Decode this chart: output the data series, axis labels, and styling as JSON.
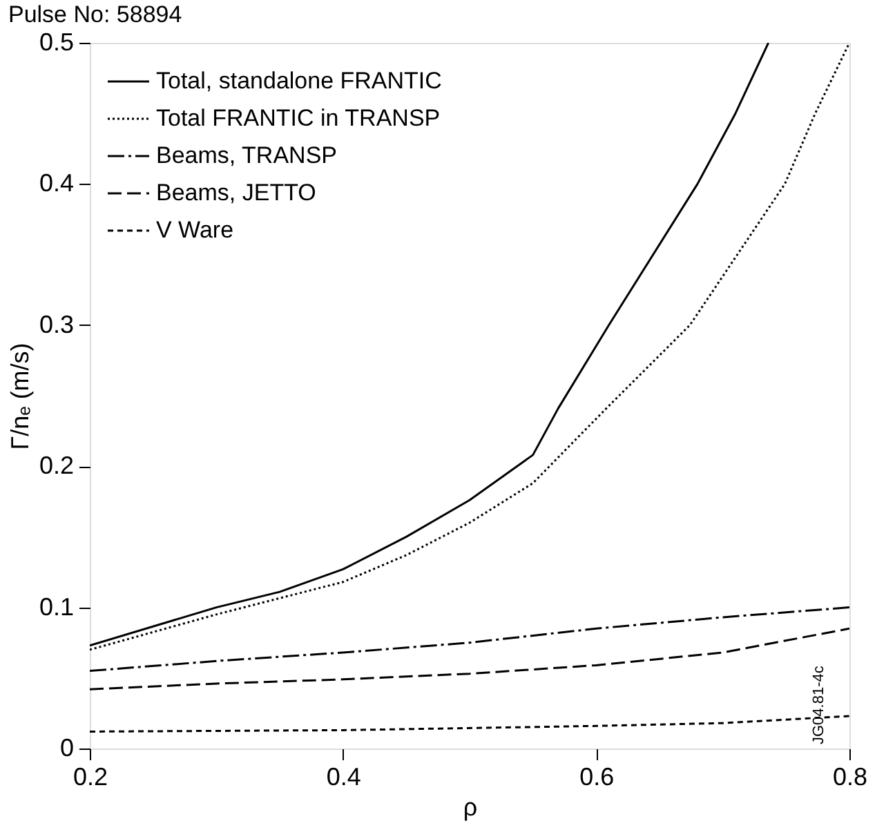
{
  "chart_data": {
    "type": "line",
    "title": "Pulse No: 58894",
    "xlabel": "ρ",
    "ylabel": "Γ/nₑ (m/s)",
    "xlim": [
      0.2,
      0.8
    ],
    "ylim": [
      0,
      0.5
    ],
    "xticks": [
      0.2,
      0.4,
      0.6,
      0.8
    ],
    "yticks": [
      0,
      0.1,
      0.2,
      0.3,
      0.4,
      0.5
    ],
    "grid": false,
    "legend": "top left",
    "marker": "none",
    "annotations": [
      "JG04.81-4c"
    ],
    "series": [
      {
        "name": "Total, standalone FRANTIC",
        "color": "#000000",
        "line_style": "solid",
        "x": [
          0.2,
          0.3,
          0.35,
          0.4,
          0.45,
          0.5,
          0.55,
          0.57,
          0.61,
          0.68,
          0.71,
          0.736
        ],
        "values": [
          0.073,
          0.1,
          0.111,
          0.127,
          0.15,
          0.176,
          0.208,
          0.241,
          0.3,
          0.4,
          0.45,
          0.5
        ]
      },
      {
        "name": "Total FRANTIC in TRANSP",
        "color": "#000000",
        "line_style": "dotted",
        "x": [
          0.2,
          0.3,
          0.4,
          0.45,
          0.5,
          0.55,
          0.608,
          0.674,
          0.749,
          0.773,
          0.8
        ],
        "values": [
          0.07,
          0.095,
          0.118,
          0.137,
          0.16,
          0.188,
          0.241,
          0.3,
          0.4,
          0.45,
          0.5
        ]
      },
      {
        "name": "Beams, TRANSP",
        "color": "#000000",
        "line_style": "dashdot",
        "x": [
          0.2,
          0.3,
          0.4,
          0.5,
          0.6,
          0.7,
          0.8
        ],
        "values": [
          0.055,
          0.062,
          0.068,
          0.075,
          0.085,
          0.093,
          0.1
        ]
      },
      {
        "name": "Beams, JETTO",
        "color": "#000000",
        "line_style": "dashed",
        "x": [
          0.2,
          0.3,
          0.4,
          0.5,
          0.6,
          0.7,
          0.8
        ],
        "values": [
          0.042,
          0.046,
          0.049,
          0.053,
          0.059,
          0.068,
          0.085
        ]
      },
      {
        "name": "V Ware",
        "color": "#000000",
        "line_style": "short dashed",
        "x": [
          0.2,
          0.4,
          0.6,
          0.7,
          0.8
        ],
        "values": [
          0.012,
          0.013,
          0.016,
          0.018,
          0.023
        ]
      }
    ]
  }
}
